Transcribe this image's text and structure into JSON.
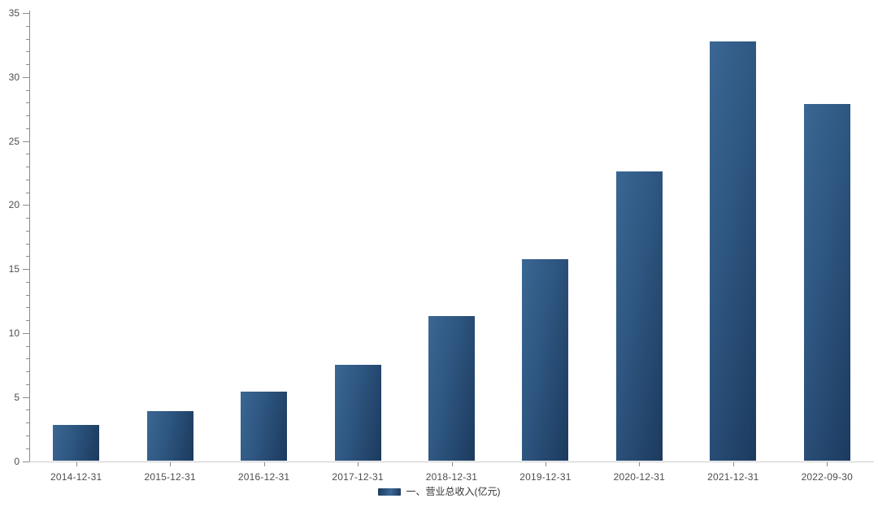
{
  "chart_data": {
    "type": "bar",
    "title": "",
    "xlabel": "",
    "ylabel": "",
    "categories": [
      "2014-12-31",
      "2015-12-31",
      "2016-12-31",
      "2017-12-31",
      "2018-12-31",
      "2019-12-31",
      "2020-12-31",
      "2021-12-31",
      "2022-09-30"
    ],
    "series": [
      {
        "name": "一、营业总收入(亿元)",
        "values": [
          2.8,
          3.9,
          5.4,
          7.5,
          11.3,
          15.8,
          22.6,
          32.8,
          27.9
        ]
      }
    ],
    "ylim": [
      0,
      35
    ],
    "y_major_step": 5,
    "y_minor_step": 1,
    "y_tick_labels": [
      "0",
      "5",
      "10",
      "15",
      "20",
      "25",
      "30",
      "35"
    ],
    "grid": false,
    "legend_position": "bottom-center",
    "colors": {
      "bar_gradient_start": "#3b6794",
      "bar_gradient_end": "#1c3a5e",
      "y_axis_line": "#8c8c8c",
      "x_axis_line": "#cccccc",
      "tick": "#8c8c8c",
      "axis_label": "#4d4d4d",
      "legend_text": "#333333",
      "background": "#ffffff"
    }
  }
}
